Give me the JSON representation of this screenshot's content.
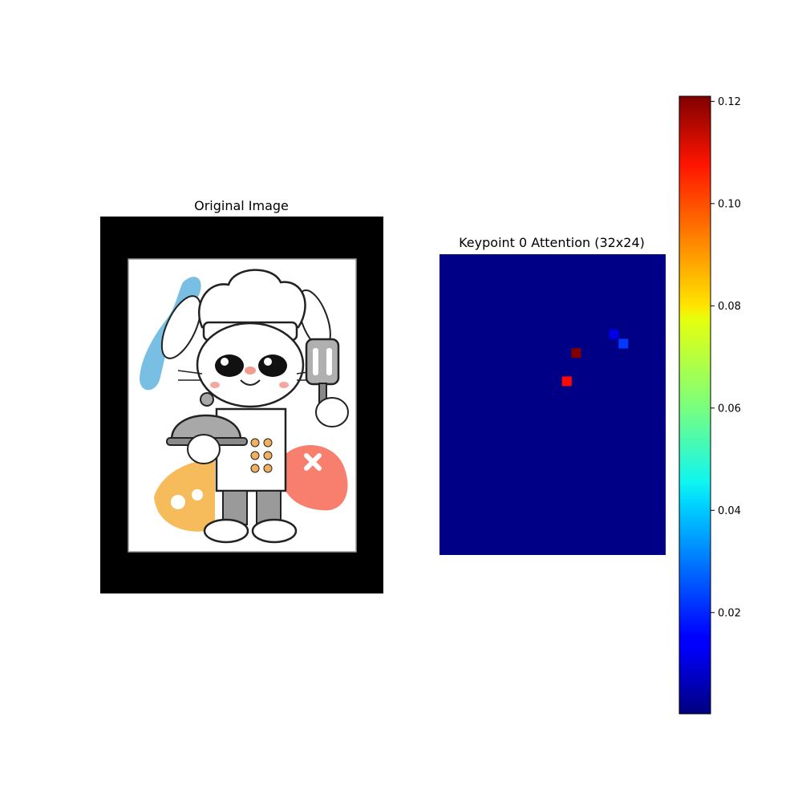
{
  "chart_data": [
    {
      "type": "image",
      "title": "Original Image",
      "description_elements": [
        "black-border-frame",
        "rabbit-chef-cartoon"
      ]
    },
    {
      "type": "heatmap",
      "title": "Keypoint 0 Attention (32x24)",
      "rows": 32,
      "cols": 24,
      "background_value": 0.001,
      "cells": [
        {
          "row": 10,
          "col": 14,
          "value": 0.121
        },
        {
          "row": 13,
          "col": 13,
          "value": 0.105
        },
        {
          "row": 8,
          "col": 18,
          "value": 0.012
        },
        {
          "row": 9,
          "col": 19,
          "value": 0.022
        }
      ],
      "colorbar": {
        "colormap": "jet",
        "min": 0.0002,
        "max": 0.121,
        "ticks": [
          "0.02",
          "0.04",
          "0.06",
          "0.08",
          "0.10",
          "0.12"
        ],
        "tick_values": [
          0.02,
          0.04,
          0.06,
          0.08,
          0.1,
          0.12
        ]
      }
    }
  ]
}
